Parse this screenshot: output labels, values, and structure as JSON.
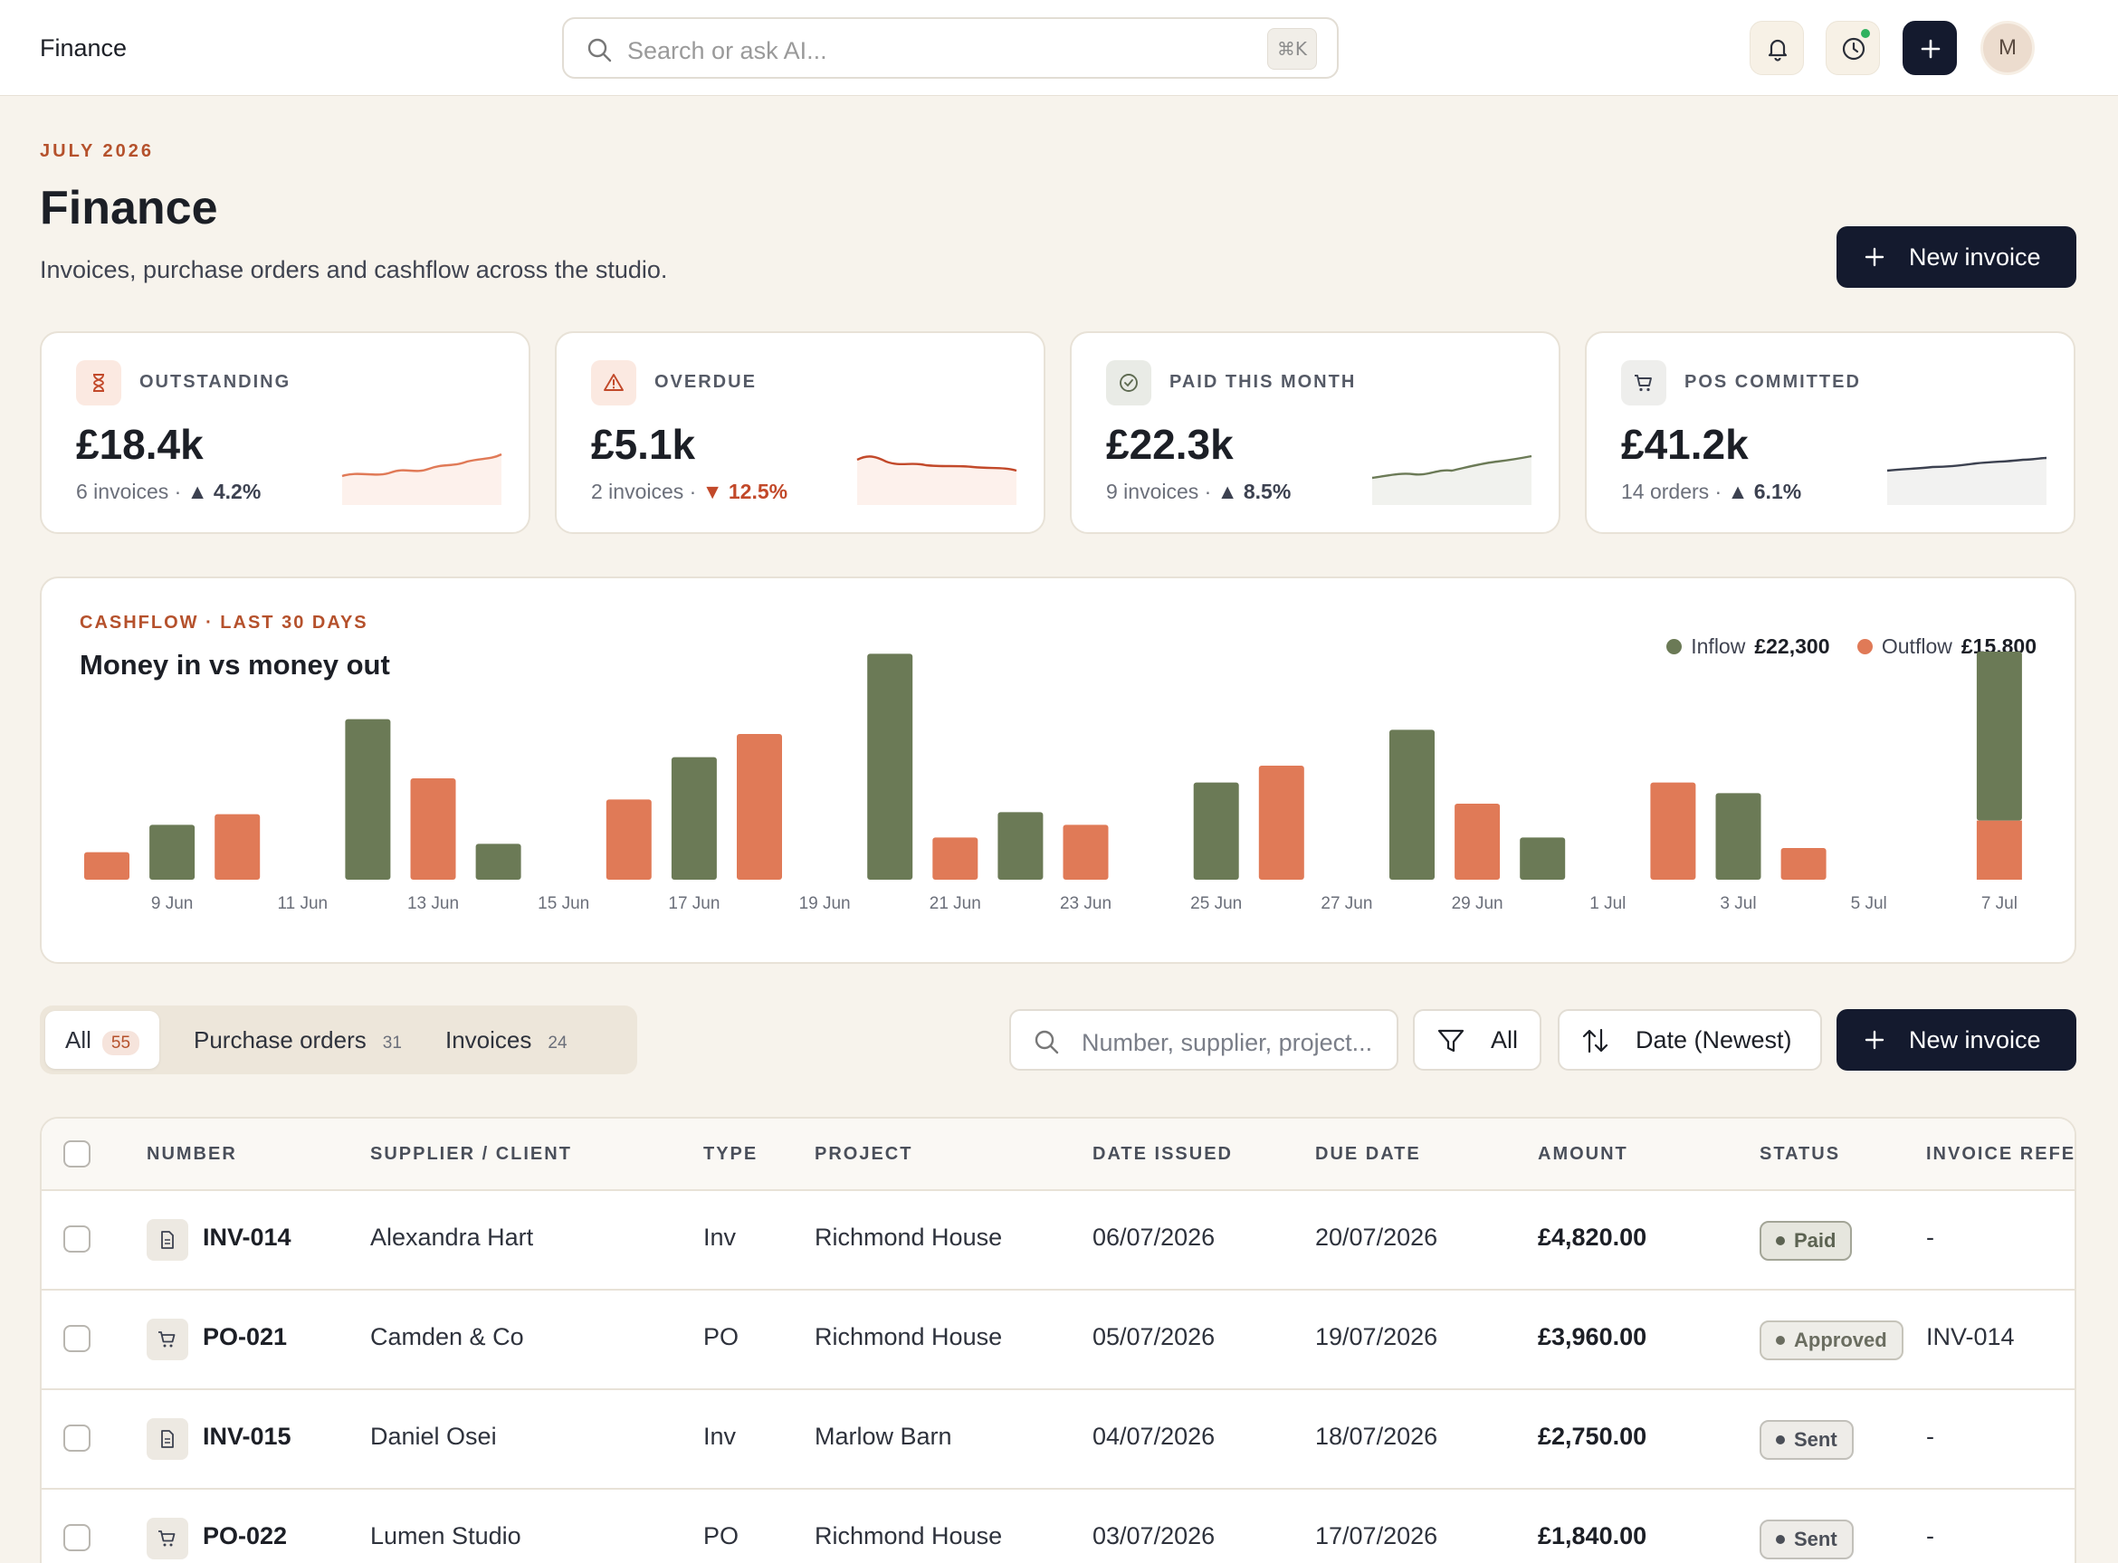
{
  "topbar": {
    "app_title": "Finance",
    "search_placeholder": "Search or ask AI...",
    "search_shortcut": "⌘K",
    "avatar_initial": "M"
  },
  "header": {
    "eyebrow": "JULY 2026",
    "title": "Finance",
    "subtitle": "Invoices, purchase orders and cashflow across the studio.",
    "new_invoice_label": "New invoice"
  },
  "stats": [
    {
      "label": "OUTSTANDING",
      "value": "£18.4k",
      "meta": "6 invoices ·",
      "change": "▲ 4.2%",
      "direction": "up",
      "icon": "hourglass-icon"
    },
    {
      "label": "OVERDUE",
      "value": "£5.1k",
      "meta": "2 invoices ·",
      "change": "▼ 12.5%",
      "direction": "down",
      "icon": "warning-icon"
    },
    {
      "label": "PAID THIS MONTH",
      "value": "£22.3k",
      "meta": "9 invoices ·",
      "change": "▲ 8.5%",
      "direction": "up",
      "icon": "check-circle-icon"
    },
    {
      "label": "POS COMMITTED",
      "value": "£41.2k",
      "meta": "14 orders ·",
      "change": "▲ 6.1%",
      "direction": "up",
      "icon": "cart-icon"
    }
  ],
  "cashflow": {
    "eyebrow": "CASHFLOW · LAST 30 DAYS",
    "title": "Money in vs money out",
    "legend": [
      {
        "name": "Inflow",
        "amount": "£22,300",
        "color": "#6b7a56"
      },
      {
        "name": "Outflow",
        "amount": "£15,800",
        "color": "#e07a57"
      }
    ]
  },
  "chart_data": {
    "type": "bar",
    "x": [
      "8 Jun",
      "9 Jun",
      "10 Jun",
      "11 Jun",
      "12 Jun",
      "13 Jun",
      "14 Jun",
      "15 Jun",
      "16 Jun",
      "17 Jun",
      "18 Jun",
      "19 Jun",
      "20 Jun",
      "21 Jun",
      "22 Jun",
      "23 Jun",
      "24 Jun",
      "25 Jun",
      "26 Jun",
      "27 Jun",
      "28 Jun",
      "29 Jun",
      "30 Jun",
      "1 Jul",
      "2 Jul",
      "3 Jul",
      "4 Jul",
      "5 Jul",
      "6 Jul",
      "7 Jul"
    ],
    "tick_labels": [
      "9 Jun",
      "11 Jun",
      "13 Jun",
      "15 Jun",
      "17 Jun",
      "19 Jun",
      "21 Jun",
      "23 Jun",
      "25 Jun",
      "27 Jun",
      "29 Jun",
      "1 Jul",
      "3 Jul",
      "5 Jul",
      "7 Jul"
    ],
    "series": [
      {
        "name": "Inflow",
        "color": "#6b7a56",
        "values": [
          0,
          0.26,
          0,
          0,
          0.76,
          0,
          0.17,
          0,
          0,
          0.58,
          0,
          0,
          1.07,
          0,
          0.32,
          0,
          0,
          0.46,
          0,
          0,
          0.71,
          0,
          0.2,
          0,
          0,
          0.41,
          0,
          0,
          0,
          1.08
        ]
      },
      {
        "name": "Outflow",
        "color": "#e07a57",
        "values": [
          0.13,
          0,
          0.31,
          0,
          0,
          0.48,
          0,
          0,
          0.38,
          0,
          0.69,
          0,
          0,
          0.2,
          0,
          0.26,
          0,
          0,
          0.54,
          0,
          0,
          0.36,
          0,
          0,
          0.46,
          0,
          0.15,
          0,
          0,
          0.28
        ]
      }
    ],
    "ylim": [
      0,
      1.2
    ],
    "grid": false,
    "legend": "top-right"
  },
  "filters": {
    "tabs": [
      {
        "label": "All",
        "count": "55"
      },
      {
        "label": "Purchase orders",
        "count": "31"
      },
      {
        "label": "Invoices",
        "count": "24"
      }
    ],
    "search_placeholder": "Number, supplier, project...",
    "filter_label": "All",
    "sort_label": "Date (Newest)",
    "new_invoice_label": "New invoice"
  },
  "table": {
    "columns": [
      "NUMBER",
      "SUPPLIER / CLIENT",
      "TYPE",
      "PROJECT",
      "DATE ISSUED",
      "DUE DATE",
      "AMOUNT",
      "STATUS",
      "INVOICE REFERENCE"
    ],
    "rows": [
      {
        "number": "INV-014",
        "kind": "document-icon",
        "party": "Alexandra Hart",
        "type": "Inv",
        "project": "Richmond House",
        "issued": "06/07/2026",
        "due": "20/07/2026",
        "amount": "£4,820.00",
        "status": "Paid",
        "ref": "-"
      },
      {
        "number": "PO-021",
        "kind": "cart-icon",
        "party": "Camden & Co",
        "type": "PO",
        "project": "Richmond House",
        "issued": "05/07/2026",
        "due": "19/07/2026",
        "amount": "£3,960.00",
        "status": "Approved",
        "ref": "INV-014"
      },
      {
        "number": "INV-015",
        "kind": "document-icon",
        "party": "Daniel Osei",
        "type": "Inv",
        "project": "Marlow Barn",
        "issued": "04/07/2026",
        "due": "18/07/2026",
        "amount": "£2,750.00",
        "status": "Sent",
        "ref": "-"
      },
      {
        "number": "PO-022",
        "kind": "cart-icon",
        "party": "Lumen Studio",
        "type": "PO",
        "project": "Richmond House",
        "issued": "03/07/2026",
        "due": "17/07/2026",
        "amount": "£1,840.00",
        "status": "Sent",
        "ref": "-"
      }
    ]
  }
}
